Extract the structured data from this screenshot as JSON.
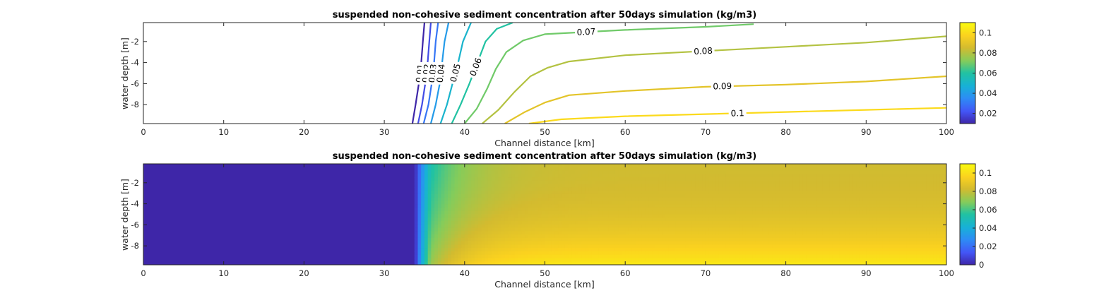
{
  "chart_data": [
    {
      "type": "contour",
      "title": "suspended non-cohesive sediment concentration after 50days simulation (kg/m3)",
      "xlabel": "Channel distance [km]",
      "ylabel": "water depth [m]",
      "xlim": [
        0,
        100
      ],
      "ylim": [
        -9.8,
        -0.2
      ],
      "xticks": [
        0,
        10,
        20,
        30,
        40,
        50,
        60,
        70,
        80,
        90,
        100
      ],
      "yticks": [
        -2,
        -4,
        -6,
        -8
      ],
      "colorbar": {
        "ticks": [
          0.02,
          0.04,
          0.06,
          0.08,
          0.1
        ],
        "range": [
          0.01,
          0.11
        ]
      },
      "colormap": [
        "#3e26a8",
        "#4355f6",
        "#2d8cf5",
        "#17b1d7",
        "#21c2a2",
        "#84cc5b",
        "#d3bb2f",
        "#fbd21f",
        "#f9fb0e"
      ],
      "contour_levels": [
        {
          "level": 0.01,
          "label": "0.01",
          "points": [
            [
              33.5,
              -9.8
            ],
            [
              33.9,
              -8
            ],
            [
              34.3,
              -6
            ],
            [
              34.6,
              -4
            ],
            [
              34.8,
              -2
            ],
            [
              35,
              -0.2
            ]
          ]
        },
        {
          "level": 0.02,
          "label": "0.02",
          "points": [
            [
              34.2,
              -9.8
            ],
            [
              34.7,
              -8
            ],
            [
              35.1,
              -6
            ],
            [
              35.4,
              -4
            ],
            [
              35.6,
              -2
            ],
            [
              35.8,
              -0.2
            ]
          ]
        },
        {
          "level": 0.03,
          "label": "0.03",
          "points": [
            [
              34.9,
              -9.8
            ],
            [
              35.5,
              -8
            ],
            [
              35.9,
              -6
            ],
            [
              36.2,
              -4
            ],
            [
              36.4,
              -2
            ],
            [
              36.7,
              -0.2
            ]
          ]
        },
        {
          "level": 0.04,
          "label": "0.04",
          "points": [
            [
              35.8,
              -9.8
            ],
            [
              36.4,
              -8
            ],
            [
              36.9,
              -6
            ],
            [
              37.2,
              -4
            ],
            [
              37.5,
              -2
            ],
            [
              38,
              -0.2
            ]
          ]
        },
        {
          "level": 0.05,
          "label": "0.05",
          "points": [
            [
              37,
              -9.8
            ],
            [
              37.8,
              -8
            ],
            [
              38.5,
              -6
            ],
            [
              39.2,
              -4
            ],
            [
              39.8,
              -2
            ],
            [
              40.8,
              -0.2
            ]
          ]
        },
        {
          "level": 0.06,
          "label": "0.06",
          "points": [
            [
              38.4,
              -9.8
            ],
            [
              39.5,
              -8
            ],
            [
              40.6,
              -6
            ],
            [
              41.6,
              -4
            ],
            [
              42.6,
              -2
            ],
            [
              44,
              -0.8
            ],
            [
              46,
              -0.2
            ]
          ]
        },
        {
          "level": 0.07,
          "label": "0.07",
          "points": [
            [
              40,
              -9.8
            ],
            [
              41.5,
              -8.4
            ],
            [
              42.8,
              -6.5
            ],
            [
              43.9,
              -4.6
            ],
            [
              45.2,
              -3
            ],
            [
              47.3,
              -1.9
            ],
            [
              50,
              -1.3
            ],
            [
              60,
              -0.9
            ],
            [
              70,
              -0.6
            ],
            [
              76,
              -0.35
            ]
          ]
        },
        {
          "level": 0.08,
          "label": "0.08",
          "points": [
            [
              42.2,
              -9.8
            ],
            [
              44.2,
              -8.5
            ],
            [
              46.2,
              -6.8
            ],
            [
              48.2,
              -5.3
            ],
            [
              50.3,
              -4.5
            ],
            [
              53,
              -3.9
            ],
            [
              60,
              -3.3
            ],
            [
              70,
              -2.9
            ],
            [
              80,
              -2.5
            ],
            [
              90,
              -2.1
            ],
            [
              100,
              -1.5
            ]
          ]
        },
        {
          "level": 0.09,
          "label": "0.09",
          "points": [
            [
              45,
              -9.8
            ],
            [
              47.5,
              -8.7
            ],
            [
              50,
              -7.8
            ],
            [
              53,
              -7.1
            ],
            [
              60,
              -6.7
            ],
            [
              70,
              -6.3
            ],
            [
              80,
              -6.1
            ],
            [
              90,
              -5.8
            ],
            [
              100,
              -5.3
            ]
          ]
        },
        {
          "level": 0.1,
          "label": "0.1",
          "points": [
            [
              48,
              -9.8
            ],
            [
              52,
              -9.4
            ],
            [
              60,
              -9.1
            ],
            [
              70,
              -8.9
            ],
            [
              80,
              -8.7
            ],
            [
              90,
              -8.5
            ],
            [
              100,
              -8.3
            ]
          ]
        }
      ]
    },
    {
      "type": "heatmap",
      "title": "suspended non-cohesive sediment concentration after 50days simulation (kg/m3)",
      "xlabel": "Channel distance [km]",
      "ylabel": "water depth [m]",
      "xlim": [
        0,
        100
      ],
      "ylim": [
        -9.8,
        -0.2
      ],
      "xticks": [
        0,
        10,
        20,
        30,
        40,
        50,
        60,
        70,
        80,
        90,
        100
      ],
      "yticks": [
        -2,
        -4,
        -6,
        -8
      ],
      "colorbar": {
        "ticks": [
          0,
          0.02,
          0.04,
          0.06,
          0.08,
          0.1
        ],
        "range": [
          0,
          0.11
        ]
      },
      "colormap": [
        "#3e26a8",
        "#4355f6",
        "#2d8cf5",
        "#17b1d7",
        "#21c2a2",
        "#84cc5b",
        "#d3bb2f",
        "#fbd21f",
        "#f9fb0e"
      ],
      "front_km": 33.8,
      "field_levels_km": [
        0,
        33.8,
        36.5,
        40,
        50,
        100
      ]
    }
  ]
}
